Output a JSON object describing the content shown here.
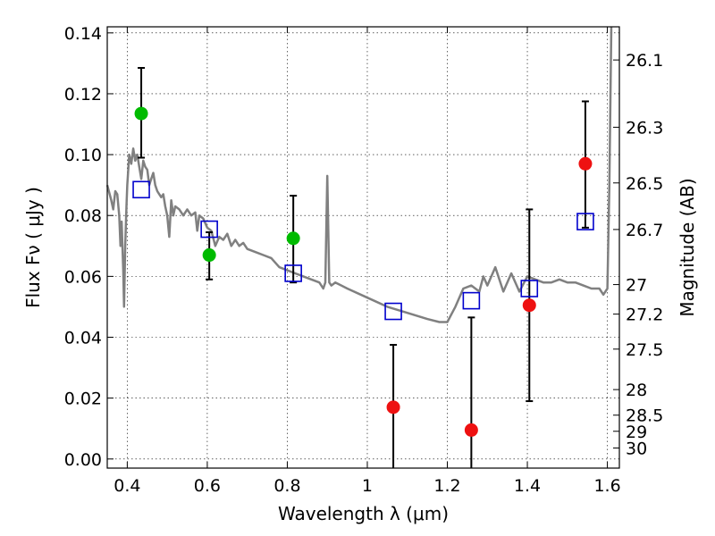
{
  "chart_data": {
    "type": "scatter",
    "xlabel": "Wavelength  λ (μm)",
    "ylabel": "Flux  Fν  ( μJy )",
    "ylabel_right": "Magnitude (AB)",
    "xlim": [
      0.35,
      1.63
    ],
    "ylim": [
      -0.003,
      0.142
    ],
    "grid": true,
    "x_ticks": [
      0.4,
      0.6,
      0.8,
      1.0,
      1.2,
      1.4,
      1.6
    ],
    "x_tick_labels": [
      "0.4",
      "0.6",
      "0.8",
      "1",
      "1.2",
      "1.4",
      "1.6"
    ],
    "y_ticks": [
      0.0,
      0.02,
      0.04,
      0.06,
      0.08,
      0.1,
      0.12,
      0.14
    ],
    "y_tick_labels": [
      "0.00",
      "0.02",
      "0.04",
      "0.06",
      "0.08",
      "0.10",
      "0.12",
      "0.14"
    ],
    "right_ticks": [
      {
        "label": "26.1",
        "flux": 0.1311
      },
      {
        "label": "26.3",
        "flux": 0.109
      },
      {
        "label": "26.5",
        "flux": 0.0907
      },
      {
        "label": "26.7",
        "flux": 0.0754
      },
      {
        "label": "27",
        "flux": 0.0573
      },
      {
        "label": "27.2",
        "flux": 0.0476
      },
      {
        "label": "27.5",
        "flux": 0.0361
      },
      {
        "label": "28",
        "flux": 0.0228
      },
      {
        "label": "28.5",
        "flux": 0.0144
      },
      {
        "label": "29",
        "flux": 0.0091
      },
      {
        "label": "30",
        "flux": 0.0036
      }
    ],
    "series": [
      {
        "kind": "line",
        "color": "#808080",
        "x": [
          0.35,
          0.36,
          0.365,
          0.37,
          0.375,
          0.38,
          0.383,
          0.386,
          0.39,
          0.392,
          0.395,
          0.398,
          0.4,
          0.405,
          0.41,
          0.415,
          0.42,
          0.425,
          0.43,
          0.435,
          0.44,
          0.445,
          0.45,
          0.455,
          0.46,
          0.465,
          0.47,
          0.475,
          0.48,
          0.485,
          0.49,
          0.495,
          0.5,
          0.505,
          0.51,
          0.515,
          0.52,
          0.53,
          0.54,
          0.55,
          0.56,
          0.57,
          0.575,
          0.58,
          0.59,
          0.6,
          0.61,
          0.62,
          0.63,
          0.64,
          0.65,
          0.66,
          0.67,
          0.68,
          0.69,
          0.7,
          0.72,
          0.74,
          0.76,
          0.78,
          0.8,
          0.82,
          0.84,
          0.86,
          0.88,
          0.89,
          0.895,
          0.9,
          0.905,
          0.91,
          0.92,
          0.95,
          1.0,
          1.05,
          1.1,
          1.15,
          1.18,
          1.2,
          1.22,
          1.24,
          1.26,
          1.28,
          1.29,
          1.3,
          1.32,
          1.34,
          1.36,
          1.38,
          1.4,
          1.42,
          1.44,
          1.46,
          1.48,
          1.5,
          1.52,
          1.54,
          1.56,
          1.58,
          1.59,
          1.6,
          1.605,
          1.61
        ],
        "y": [
          0.09,
          0.085,
          0.082,
          0.088,
          0.087,
          0.08,
          0.07,
          0.078,
          0.062,
          0.05,
          0.07,
          0.083,
          0.09,
          0.1,
          0.097,
          0.102,
          0.098,
          0.1,
          0.096,
          0.092,
          0.098,
          0.096,
          0.095,
          0.09,
          0.092,
          0.094,
          0.09,
          0.088,
          0.087,
          0.086,
          0.087,
          0.083,
          0.08,
          0.073,
          0.085,
          0.08,
          0.083,
          0.082,
          0.08,
          0.082,
          0.08,
          0.081,
          0.075,
          0.08,
          0.079,
          0.076,
          0.075,
          0.07,
          0.073,
          0.072,
          0.074,
          0.07,
          0.072,
          0.07,
          0.071,
          0.069,
          0.068,
          0.067,
          0.066,
          0.063,
          0.062,
          0.061,
          0.06,
          0.059,
          0.058,
          0.056,
          0.058,
          0.093,
          0.058,
          0.057,
          0.058,
          0.056,
          0.053,
          0.05,
          0.048,
          0.046,
          0.045,
          0.045,
          0.05,
          0.056,
          0.057,
          0.055,
          0.06,
          0.057,
          0.063,
          0.055,
          0.061,
          0.055,
          0.06,
          0.059,
          0.058,
          0.058,
          0.059,
          0.058,
          0.058,
          0.057,
          0.056,
          0.056,
          0.054,
          0.056,
          0.09,
          0.142
        ]
      },
      {
        "kind": "squares",
        "color": "#0000cc",
        "x": [
          0.435,
          0.605,
          0.815,
          1.065,
          1.26,
          1.405,
          1.545
        ],
        "y": [
          0.0885,
          0.0755,
          0.061,
          0.0485,
          0.052,
          0.056,
          0.078
        ]
      },
      {
        "kind": "points",
        "color": "#00bb00",
        "x": [
          0.435,
          0.605,
          0.815
        ],
        "y": [
          0.1135,
          0.067,
          0.0725
        ]
      },
      {
        "kind": "points",
        "color": "#ee1111",
        "x": [
          1.065,
          1.26,
          1.405,
          1.545
        ],
        "y": [
          0.017,
          0.0095,
          0.0505,
          0.097
        ]
      }
    ],
    "errorbars": [
      {
        "x": 0.435,
        "low": 0.099,
        "high": 0.1285
      },
      {
        "x": 0.605,
        "low": 0.059,
        "high": 0.0745
      },
      {
        "x": 0.815,
        "low": 0.058,
        "high": 0.0865
      },
      {
        "x": 1.065,
        "low": -0.003,
        "high": 0.0375
      },
      {
        "x": 1.26,
        "low": -0.003,
        "high": 0.0465
      },
      {
        "x": 1.405,
        "low": 0.019,
        "high": 0.082
      },
      {
        "x": 1.545,
        "low": 0.076,
        "high": 0.1175
      }
    ]
  }
}
